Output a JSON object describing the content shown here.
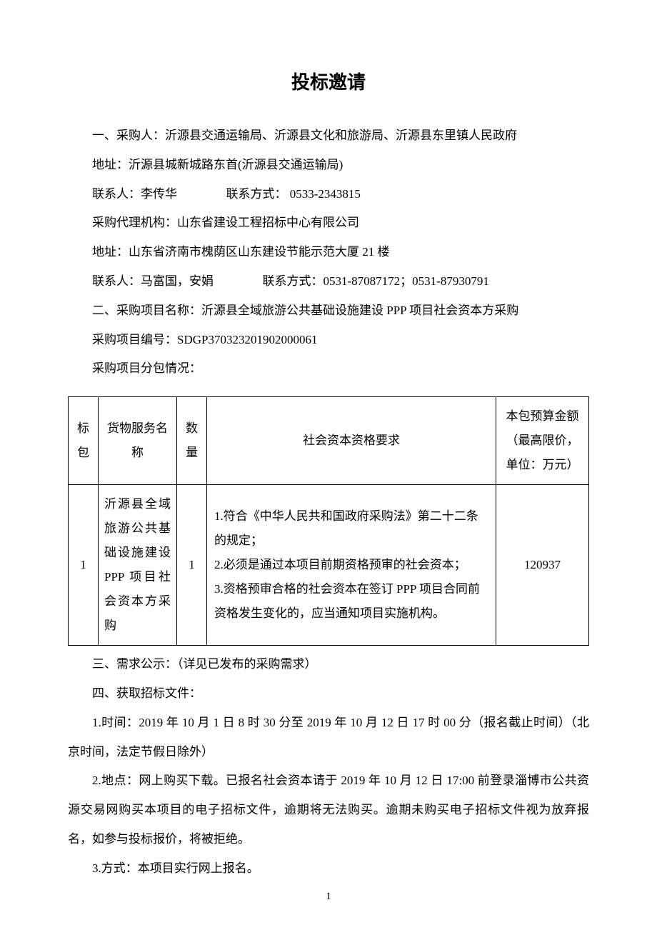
{
  "title": "投标邀请",
  "section1": {
    "buyer_heading": "一、采购人：沂源县交通运输局、沂源县文化和旅游局、沂源县东里镇人民政府",
    "address1": "地址：沂源县城新城路东首(沂源县交通运输局)",
    "contact1_label": "联系人：李传华",
    "contact1_method_label": "联系方式：  0533-2343815",
    "agency": "采购代理机构：山东省建设工程招标中心有限公司",
    "address2": "地址：山东省济南市槐荫区山东建设节能示范大厦 21 楼",
    "contact2_label": "联系人：马富国，安娟",
    "contact2_method_label": "联系方式：0531-87087172；0531-87930791"
  },
  "section2": {
    "project_name": "二、采购项目名称：沂源县全域旅游公共基础设施建设 PPP 项目社会资本方采购",
    "project_code": "采购项目编号：SDGP370323201902000061",
    "pkg_intro": "采购项目分包情况："
  },
  "table": {
    "headers": {
      "pkg": "标包",
      "svcname": "货物服务名称",
      "qty": "数量",
      "req": "社会资本资格要求",
      "budget": "本包预算金额（最高限价，单位：万元）"
    },
    "rows": [
      {
        "pkg": "1",
        "svcname": "沂源县全域旅游公共基础设施建设 PPP 项目社会资本方采购",
        "qty": "1",
        "req": "1.符合《中华人民共和国政府采购法》第二十二条的规定；\n2.必须是通过本项目前期资格预审的社会资本；\n3.资格预审合格的社会资本在签订 PPP 项目合同前资格发生变化的，应当通知项目实施机构。",
        "budget": "120937"
      }
    ]
  },
  "section3": "三、需求公示：（详见已发布的采购需求）",
  "section4": {
    "heading": "四、获取招标文件：",
    "item1": "1.时间：2019 年 10 月 1 日 8 时 30 分至 2019 年 10 月 12 日 17 时 00 分（报名截止时间）（北京时间，法定节假日除外）",
    "item2": "2.地点：网上购买下载。已报名社会资本请于 2019 年 10 月 12 日 17:00 前登录淄博市公共资源交易网购买本项目的电子招标文件，逾期将无法购买。逾期未购买电子招标文件视为放弃报名，如参与投标报价，将被拒绝。",
    "item3": "3.方式：本项目实行网上报名。"
  },
  "page_number": "1"
}
